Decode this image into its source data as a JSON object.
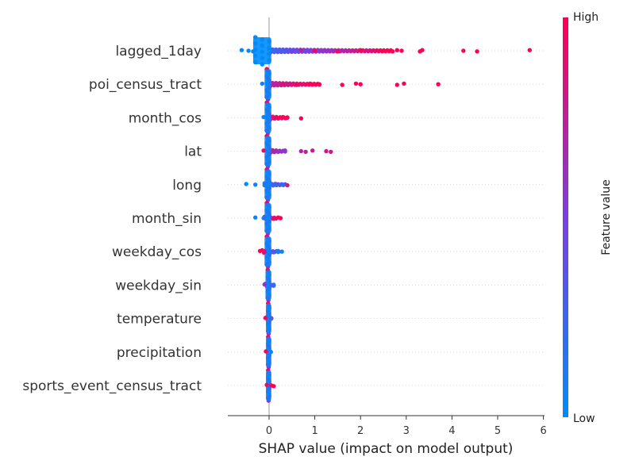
{
  "chart_data": {
    "type": "scatter",
    "subtype": "shap-beeswarm",
    "xlabel": "SHAP value (impact on model output)",
    "xlim": [
      -0.9,
      6.0
    ],
    "xticks": [
      0,
      1,
      2,
      3,
      4,
      5,
      6
    ],
    "grid": "horizontal dotted per feature",
    "colorbar": {
      "label": "Feature value",
      "high_label": "High",
      "low_label": "Low",
      "low_color": "#008bfb",
      "mid_color": "#7c3ee0",
      "high_color": "#ff0052"
    },
    "features": [
      {
        "name": "lagged_1day",
        "core": [
          -0.3,
          0.0
        ],
        "points": [
          {
            "x": -0.6,
            "c": 0.0
          },
          {
            "x": -0.45,
            "c": 0.05
          },
          {
            "x": -0.35,
            "c": 0.05
          },
          {
            "x": 0.1,
            "c": 0.2
          },
          {
            "x": 0.3,
            "c": 0.3
          },
          {
            "x": 0.5,
            "c": 0.5
          },
          {
            "x": 0.7,
            "c": 0.8
          },
          {
            "x": 1.0,
            "c": 0.95
          },
          {
            "x": 1.5,
            "c": 1.0
          },
          {
            "x": 2.0,
            "c": 1.0
          },
          {
            "x": 2.5,
            "c": 1.0
          },
          {
            "x": 2.7,
            "c": 1.0
          },
          {
            "x": 2.8,
            "c": 1.0
          },
          {
            "x": 2.9,
            "c": 1.0
          },
          {
            "x": 3.3,
            "c": 1.0
          },
          {
            "x": 3.35,
            "c": 1.0
          },
          {
            "x": 4.25,
            "c": 1.0
          },
          {
            "x": 4.55,
            "c": 1.0
          },
          {
            "x": 5.7,
            "c": 1.0
          }
        ],
        "band": {
          "from": 0.0,
          "to": 2.7,
          "cfrom": 0.25,
          "cto": 1.0
        }
      },
      {
        "name": "poi_census_tract",
        "core": [
          -0.05,
          0.0
        ],
        "points": [
          {
            "x": -0.15,
            "c": 0.05
          },
          {
            "x": 0.3,
            "c": 0.9
          },
          {
            "x": 0.6,
            "c": 1.0
          },
          {
            "x": 0.9,
            "c": 1.0
          },
          {
            "x": 1.1,
            "c": 1.0
          },
          {
            "x": 1.6,
            "c": 1.0
          },
          {
            "x": 1.9,
            "c": 1.0
          },
          {
            "x": 2.0,
            "c": 1.0
          },
          {
            "x": 2.8,
            "c": 1.0
          },
          {
            "x": 2.95,
            "c": 1.0
          },
          {
            "x": 3.7,
            "c": 1.0
          }
        ],
        "band": {
          "from": 0.0,
          "to": 1.1,
          "cfrom": 0.7,
          "cto": 1.0
        }
      },
      {
        "name": "month_cos",
        "core": [
          -0.05,
          0.0
        ],
        "points": [
          {
            "x": -0.12,
            "c": 0.05
          },
          {
            "x": 0.1,
            "c": 0.9
          },
          {
            "x": 0.2,
            "c": 1.0
          },
          {
            "x": 0.3,
            "c": 1.0
          },
          {
            "x": 0.4,
            "c": 1.0
          },
          {
            "x": 0.7,
            "c": 1.0
          }
        ],
        "band": {
          "from": 0.0,
          "to": 0.4,
          "cfrom": 0.8,
          "cto": 1.0
        }
      },
      {
        "name": "lat",
        "core": [
          -0.05,
          0.0
        ],
        "points": [
          {
            "x": -0.12,
            "c": 0.9
          },
          {
            "x": 0.1,
            "c": 0.7
          },
          {
            "x": 0.2,
            "c": 0.6
          },
          {
            "x": 0.35,
            "c": 0.55
          },
          {
            "x": 0.7,
            "c": 0.7
          },
          {
            "x": 0.8,
            "c": 0.75
          },
          {
            "x": 0.95,
            "c": 0.8
          },
          {
            "x": 1.25,
            "c": 0.8
          },
          {
            "x": 1.35,
            "c": 0.8
          }
        ],
        "band": {
          "from": 0.0,
          "to": 0.35,
          "cfrom": 0.8,
          "cto": 0.55
        }
      },
      {
        "name": "long",
        "core": [
          -0.05,
          0.0
        ],
        "points": [
          {
            "x": -0.5,
            "c": 0.0
          },
          {
            "x": -0.3,
            "c": 0.05
          },
          {
            "x": -0.1,
            "c": 0.1
          },
          {
            "x": 0.15,
            "c": 0.3
          },
          {
            "x": 0.3,
            "c": 0.2
          },
          {
            "x": 0.4,
            "c": 0.85
          }
        ],
        "band": {
          "from": -0.1,
          "to": 0.35,
          "cfrom": 0.15,
          "cto": 0.35
        }
      },
      {
        "name": "month_sin",
        "core": [
          -0.05,
          0.0
        ],
        "points": [
          {
            "x": -0.3,
            "c": 0.05
          },
          {
            "x": -0.12,
            "c": 0.2
          },
          {
            "x": 0.1,
            "c": 0.9
          },
          {
            "x": 0.2,
            "c": 1.0
          },
          {
            "x": 0.25,
            "c": 1.0
          }
        ],
        "band": {
          "from": -0.1,
          "to": 0.15,
          "cfrom": 0.4,
          "cto": 0.9
        }
      },
      {
        "name": "weekday_cos",
        "core": [
          -0.05,
          0.0
        ],
        "points": [
          {
            "x": -0.2,
            "c": 1.0
          },
          {
            "x": -0.1,
            "c": 0.9
          },
          {
            "x": 0.1,
            "c": 0.3
          },
          {
            "x": 0.2,
            "c": 0.1
          },
          {
            "x": 0.28,
            "c": 0.05
          }
        ],
        "band": {
          "from": -0.15,
          "to": 0.2,
          "cfrom": 0.95,
          "cto": 0.15
        }
      },
      {
        "name": "weekday_sin",
        "core": [
          -0.03,
          0.0
        ],
        "points": [
          {
            "x": -0.1,
            "c": 0.6
          },
          {
            "x": 0.05,
            "c": 0.3
          },
          {
            "x": 0.1,
            "c": 0.2
          }
        ],
        "band": {
          "from": -0.08,
          "to": 0.1,
          "cfrom": 0.6,
          "cto": 0.2
        }
      },
      {
        "name": "temperature",
        "core": [
          -0.02,
          0.0
        ],
        "points": [
          {
            "x": -0.08,
            "c": 0.95
          },
          {
            "x": 0.05,
            "c": 0.3
          }
        ],
        "band": {
          "from": -0.05,
          "to": 0.05,
          "cfrom": 0.9,
          "cto": 0.4
        }
      },
      {
        "name": "precipitation",
        "core": [
          -0.02,
          0.0
        ],
        "points": [
          {
            "x": -0.07,
            "c": 0.95
          },
          {
            "x": 0.04,
            "c": 0.05
          }
        ],
        "band": {
          "from": -0.03,
          "to": 0.03,
          "cfrom": 0.05,
          "cto": 0.05
        }
      },
      {
        "name": "sports_event_census_tract",
        "core": [
          -0.02,
          0.0
        ],
        "points": [
          {
            "x": -0.05,
            "c": 0.9
          },
          {
            "x": 0.05,
            "c": 0.95
          },
          {
            "x": 0.1,
            "c": 1.0
          }
        ],
        "band": {
          "from": -0.03,
          "to": 0.03,
          "cfrom": 0.05,
          "cto": 0.05
        }
      }
    ]
  }
}
